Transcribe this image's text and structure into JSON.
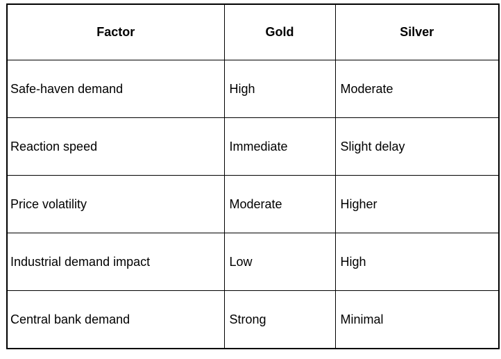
{
  "table": {
    "columns": [
      "Factor",
      "Gold",
      "Silver"
    ],
    "rows": [
      {
        "factor": "Safe-haven demand",
        "gold": "High",
        "silver": "Moderate"
      },
      {
        "factor": "Reaction speed",
        "gold": "Immediate",
        "silver": "Slight delay"
      },
      {
        "factor": "Price volatility",
        "gold": "Moderate",
        "silver": "Higher"
      },
      {
        "factor": "Industrial demand impact",
        "gold": "Low",
        "silver": "High"
      },
      {
        "factor": "Central bank demand",
        "gold": "Strong",
        "silver": "Minimal"
      }
    ]
  },
  "colors": {
    "border": "#000000",
    "text": "#000000",
    "background": "#ffffff"
  }
}
